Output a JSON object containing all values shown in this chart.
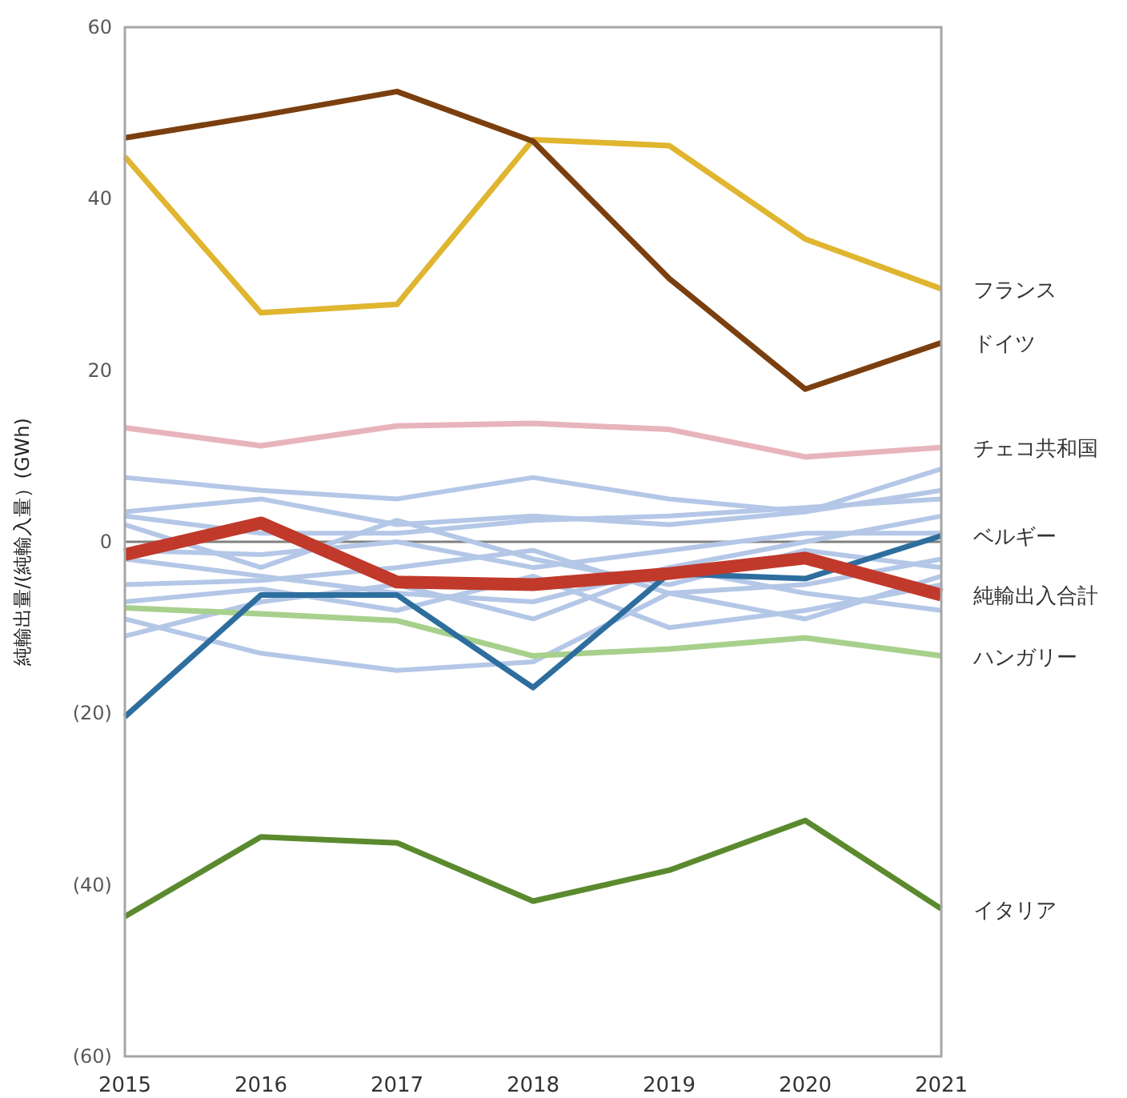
{
  "chart_data": {
    "type": "line",
    "ylabel": "純輸出量/(純輸入量）(GWh)",
    "x": [
      2015,
      2016,
      2017,
      2018,
      2019,
      2020,
      2021
    ],
    "xlim": [
      2015,
      2021
    ],
    "xticks": [
      2015,
      2016,
      2017,
      2018,
      2019,
      2020,
      2021
    ],
    "ylim": [
      -60,
      60
    ],
    "yticks": [
      {
        "value": -60,
        "label": "(60)"
      },
      {
        "value": -40,
        "label": "(40)"
      },
      {
        "value": -20,
        "label": "(20)"
      },
      0,
      20,
      40,
      60
    ],
    "ref_lines": [
      {
        "axis": "y",
        "value": 0,
        "color": "#808080"
      }
    ],
    "series": [
      {
        "color": "#b4c7e7",
        "values": [
          7.5,
          6,
          5,
          7.5,
          5,
          3.5,
          8.5
        ]
      },
      {
        "color": "#b4c7e7",
        "values": [
          3.5,
          5,
          2,
          3,
          2,
          3.5,
          6
        ]
      },
      {
        "color": "#b4c7e7",
        "values": [
          3,
          1,
          1,
          2.5,
          3,
          4,
          5
        ]
      },
      {
        "color": "#b4c7e7",
        "values": [
          2,
          -3,
          2.5,
          -2,
          -5,
          -1,
          -3
        ]
      },
      {
        "color": "#b4c7e7",
        "values": [
          -1,
          -1.5,
          0,
          -3,
          -1,
          1,
          1
        ]
      },
      {
        "color": "#b4c7e7",
        "values": [
          -5,
          -4.5,
          -3,
          -1,
          -6,
          -5,
          -2
        ]
      },
      {
        "color": "#b4c7e7",
        "values": [
          -7,
          -5.5,
          -8,
          -4,
          -10,
          -8,
          -5
        ]
      },
      {
        "color": "#b4c7e7",
        "values": [
          -9,
          -13,
          -15,
          -14,
          -6,
          -9,
          -4
        ]
      },
      {
        "color": "#b4c7e7",
        "values": [
          -11,
          -7,
          -5,
          -9,
          -3,
          0,
          3
        ]
      },
      {
        "color": "#b4c7e7",
        "values": [
          -2,
          -4,
          -6,
          -7,
          -3,
          -6,
          -8
        ]
      },
      {
        "name": "フランス",
        "color": "#e0b52f",
        "values": [
          44.9,
          26.7,
          27.7,
          46.9,
          46.2,
          35.3,
          29.5
        ]
      },
      {
        "name": "ドイツ",
        "color": "#7b3f0f",
        "values": [
          47.1,
          49.7,
          52.5,
          46.7,
          30.7,
          17.8,
          23.2
        ]
      },
      {
        "name": "チェコ共和国",
        "color": "#e8b4bc",
        "values": [
          13.3,
          11.2,
          13.5,
          13.8,
          13.1,
          9.9,
          11
        ]
      },
      {
        "name": "ハンガリー",
        "color": "#a8d08d",
        "values": [
          -7.7,
          -8.4,
          -9.2,
          -13.3,
          -12.5,
          -11.2,
          -13.3
        ]
      },
      {
        "name": "イタリア",
        "color": "#5b8a2e",
        "values": [
          -43.7,
          -34.4,
          -35.1,
          -41.9,
          -38.3,
          -32.5,
          -42.8
        ]
      },
      {
        "name": "ベルギー",
        "color": "#2e6e9e",
        "values": [
          -20.4,
          -6.2,
          -6.2,
          -17,
          -3.7,
          -4.3,
          0.7
        ]
      },
      {
        "name": "純輸出入合計",
        "color": "#c0392b",
        "values": [
          -1.5,
          2.2,
          -4.7,
          -5,
          -3.7,
          -1.9,
          -6.2
        ]
      }
    ]
  }
}
